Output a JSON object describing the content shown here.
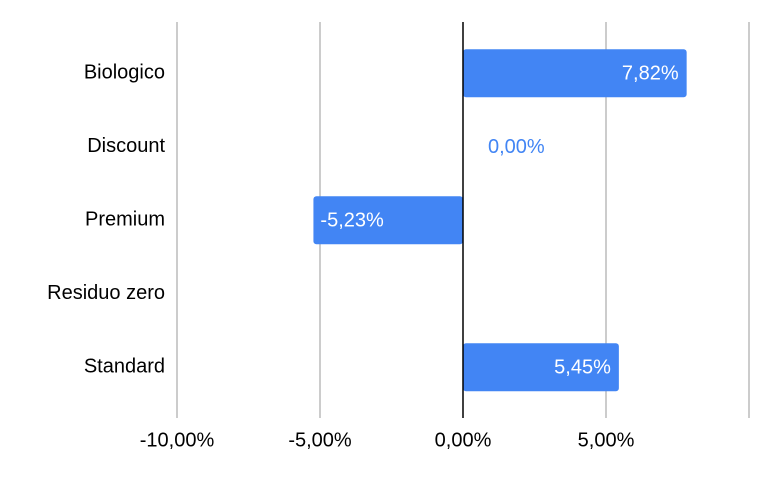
{
  "chart_data": {
    "type": "bar",
    "orientation": "horizontal",
    "categories": [
      "Biologico",
      "Discount",
      "Premium",
      "Residuo zero",
      "Standard"
    ],
    "values": [
      7.82,
      0,
      -5.23,
      null,
      5.45
    ],
    "value_labels": [
      "7,82%",
      "0,00%",
      "-5,23%",
      null,
      "5,45%"
    ],
    "color": "#4285f4",
    "xlim": [
      -10,
      10
    ],
    "xticks": [
      {
        "value": -10,
        "label": "-10,00%"
      },
      {
        "value": -5,
        "label": "-5,00%"
      },
      {
        "value": 0,
        "label": "0,00%"
      },
      {
        "value": 5,
        "label": "5,00%"
      }
    ],
    "grid": true
  }
}
